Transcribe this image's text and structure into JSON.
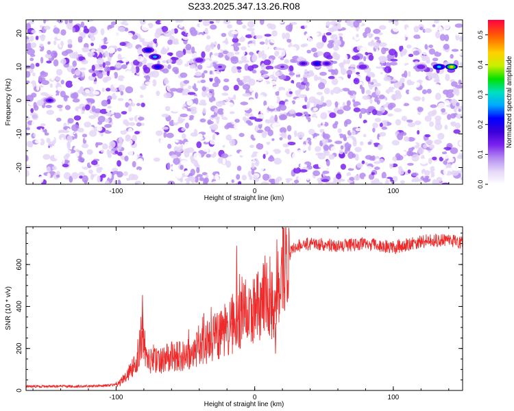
{
  "title": "S233.2025.347.13.26.R08",
  "colors": {
    "line": "#ee2a2a",
    "axis": "#000000",
    "scale": [
      "#ffffff",
      "#e4d6f7",
      "#b48bf0",
      "#7a22ee",
      "#3a00d8",
      "#0000ff",
      "#00a8ff",
      "#00e0c0",
      "#00e000",
      "#c8f000",
      "#ffd000",
      "#ff6000",
      "#ff0040"
    ]
  },
  "chart_data": [
    {
      "type": "heatmap",
      "xlabel": "Height of straight line (km)",
      "ylabel": "Frequency (Hz)",
      "xlim": [
        -165,
        150
      ],
      "ylim": [
        -25,
        24
      ],
      "x_ticks": [
        "-100",
        "0",
        "100"
      ],
      "x_tick_values": [
        -100,
        0,
        100
      ],
      "y_ticks": [
        "20",
        "10",
        "0",
        "-10",
        "-20"
      ],
      "y_tick_values": [
        20,
        10,
        0,
        -10,
        -20
      ],
      "colorbar": {
        "label": "Normalized spectral amplitude",
        "range": [
          0,
          0.55
        ],
        "ticks": [
          "0.0",
          "0.1",
          "0.2",
          "0.3",
          "0.4",
          "0.5"
        ],
        "tick_values": [
          0.0,
          0.1,
          0.2,
          0.3,
          0.4,
          0.5
        ]
      },
      "hotspots": [
        {
          "x": -148,
          "y": 0,
          "value": 0.17
        },
        {
          "x": -77,
          "y": 15,
          "value": 0.24
        },
        {
          "x": -72,
          "y": 13,
          "value": 0.26
        },
        {
          "x": -70,
          "y": 10,
          "value": 0.22
        },
        {
          "x": -40,
          "y": 12,
          "value": 0.15
        },
        {
          "x": -25,
          "y": 10,
          "value": 0.14
        },
        {
          "x": 20,
          "y": 10,
          "value": 0.14
        },
        {
          "x": 35,
          "y": 11,
          "value": 0.18
        },
        {
          "x": 45,
          "y": 11,
          "value": 0.22
        },
        {
          "x": 52,
          "y": 11,
          "value": 0.2
        },
        {
          "x": 78,
          "y": 10,
          "value": 0.16
        },
        {
          "x": 120,
          "y": 10,
          "value": 0.15
        },
        {
          "x": 133,
          "y": 10,
          "value": 0.3
        },
        {
          "x": 142,
          "y": 10,
          "value": 0.45
        }
      ]
    },
    {
      "type": "line",
      "xlabel": "Height of straight line (km)",
      "ylabel": "SNR (10 * v/v)",
      "xlim": [
        -165,
        150
      ],
      "ylim": [
        0,
        780
      ],
      "x_ticks": [
        "-100",
        "0",
        "100"
      ],
      "x_tick_values": [
        -100,
        0,
        100
      ],
      "y_ticks": [
        "0",
        "200",
        "400",
        "600"
      ],
      "y_tick_values": [
        0,
        200,
        400,
        600
      ],
      "series": [
        {
          "x": [
            -165,
            -150,
            -130,
            -110,
            -98,
            -90,
            -85,
            -81,
            -78,
            -70,
            -60,
            -50,
            -40,
            -30,
            -20,
            -15,
            -12,
            -8,
            -5,
            0,
            5,
            10,
            13,
            15,
            17,
            20,
            25,
            30,
            40,
            60,
            80,
            100,
            120,
            140,
            150
          ],
          "y": [
            20,
            20,
            20,
            22,
            30,
            90,
            130,
            290,
            140,
            140,
            160,
            170,
            200,
            250,
            280,
            320,
            330,
            360,
            380,
            400,
            440,
            470,
            380,
            320,
            450,
            600,
            650,
            690,
            700,
            690,
            700,
            680,
            710,
            720,
            700
          ],
          "spikes": [
            {
              "x": -81,
              "y": 455
            },
            {
              "x": -24,
              "y": 380
            },
            {
              "x": -16,
              "y": 460
            },
            {
              "x": -13,
              "y": 690
            },
            {
              "x": 15,
              "y": 175
            },
            {
              "x": 16,
              "y": 720
            }
          ]
        }
      ]
    }
  ]
}
